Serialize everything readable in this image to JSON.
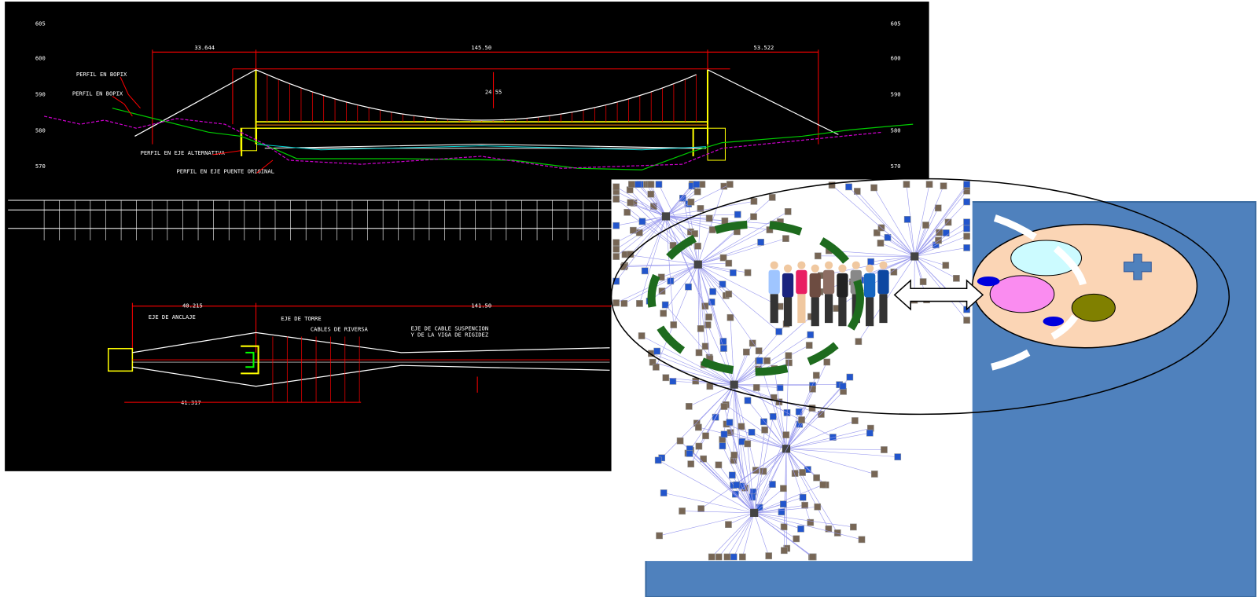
{
  "cad_drawing": {
    "elevations_left": [
      "605",
      "600",
      "590",
      "580",
      "570"
    ],
    "elevations_right": [
      "605",
      "600",
      "590",
      "580",
      "570"
    ],
    "dimensions": [
      "33.644",
      "145.50",
      "53.522",
      "24.55"
    ],
    "labels": [
      "PERFIL EN BOPIX",
      "PERFIL EN BOPIX",
      "PERFIL EN EJE ALTERNATIVA",
      "PERFIL EN EJE PUENTE ORIGINAL"
    ],
    "plan_dimensions": [
      "40.215",
      "141.50",
      "41.317"
    ],
    "plan_labels": [
      "EJE DE ANCLAJE",
      "EJE DE TORRE",
      "CABLES DE RIVERSA",
      "EJE DE CABLE SUSPENCION",
      "Y DE LA VIGA DE RIGIDEZ"
    ]
  }
}
